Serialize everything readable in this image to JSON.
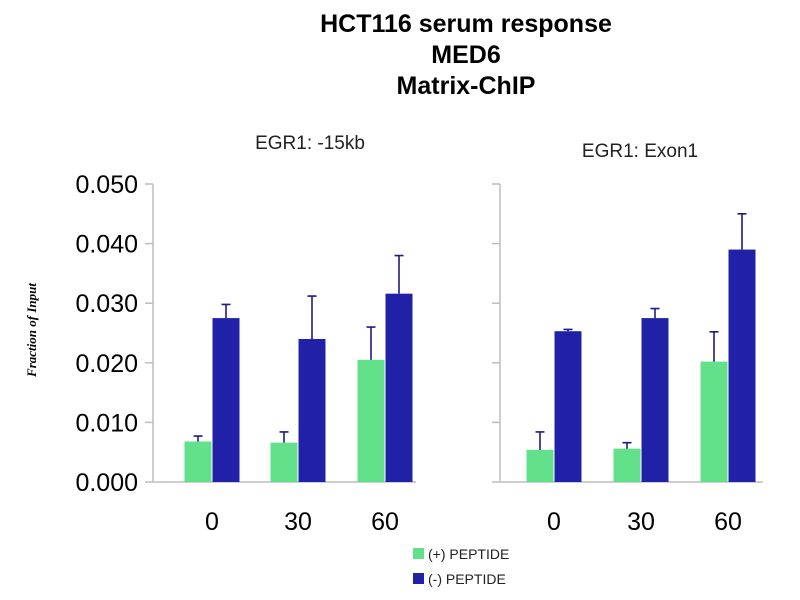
{
  "chart_data": {
    "type": "bar",
    "title_lines": [
      "HCT116 serum response",
      "MED6",
      "Matrix-ChIP"
    ],
    "ylabel": "Fraction of Input",
    "ylim": [
      0,
      0.05
    ],
    "yticks": [
      "0.050",
      "0.040",
      "0.030",
      "0.020",
      "0.010",
      "0.000"
    ],
    "ytick_values": [
      0.05,
      0.04,
      0.03,
      0.02,
      0.01,
      0.0
    ],
    "categories": [
      "0",
      "30",
      "60"
    ],
    "legend": {
      "placement": "bottom-center"
    },
    "grid": false,
    "panels": [
      {
        "title": "EGR1: -15kb",
        "series": [
          {
            "name": "(+) PEPTIDE",
            "color": "#62e08a",
            "values": [
              0.0068,
              0.0066,
              0.0205
            ],
            "errors": [
              0.0009,
              0.0018,
              0.0055
            ]
          },
          {
            "name": "(-) PEPTIDE",
            "color": "#2121a8",
            "values": [
              0.0275,
              0.024,
              0.0316
            ],
            "errors": [
              0.0023,
              0.0072,
              0.0064
            ]
          }
        ]
      },
      {
        "title": "EGR1: Exon1",
        "series": [
          {
            "name": "(+) PEPTIDE",
            "color": "#62e08a",
            "values": [
              0.0054,
              0.0056,
              0.0202
            ],
            "errors": [
              0.003,
              0.001,
              0.005
            ]
          },
          {
            "name": "(-) PEPTIDE",
            "color": "#2121a8",
            "values": [
              0.0253,
              0.0275,
              0.039
            ],
            "errors": [
              0.0003,
              0.0016,
              0.006
            ]
          }
        ]
      }
    ]
  }
}
